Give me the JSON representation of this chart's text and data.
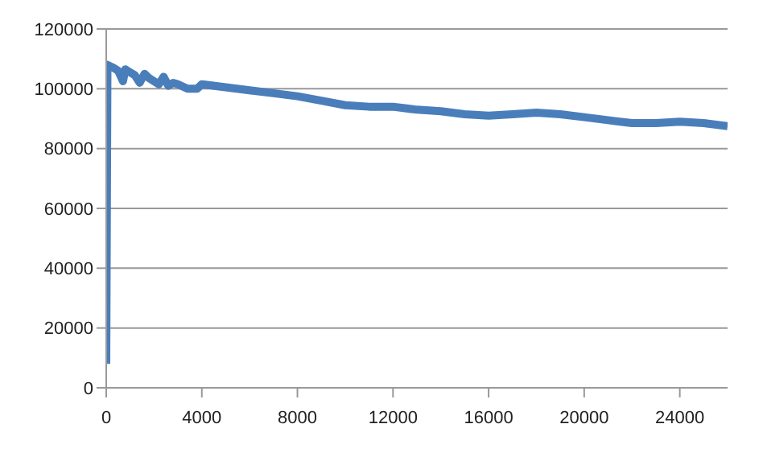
{
  "chart_data": {
    "type": "line",
    "x": [
      0,
      50,
      300,
      500,
      700,
      800,
      1000,
      1200,
      1400,
      1600,
      1800,
      2000,
      2200,
      2400,
      2600,
      2800,
      3000,
      3400,
      3800,
      4000,
      5000,
      6000,
      7000,
      8000,
      9000,
      10000,
      11000,
      12000,
      13000,
      14000,
      15000,
      16000,
      17000,
      18000,
      19000,
      20000,
      21000,
      22000,
      23000,
      24000,
      25000,
      26000
    ],
    "series": [
      {
        "color": "#4a7ebb",
        "values": [
          8000,
          108000,
          107000,
          106000,
          102500,
          106500,
          105500,
          104500,
          102000,
          105000,
          103500,
          102500,
          101500,
          104000,
          101000,
          102000,
          101500,
          100000,
          100000,
          101500,
          100500,
          99500,
          98500,
          97500,
          96000,
          94500,
          94000,
          94000,
          93000,
          92500,
          91500,
          91000,
          91500,
          92000,
          91500,
          90500,
          89500,
          88500,
          88500,
          89000,
          88500,
          87500
        ]
      }
    ],
    "xlim": [
      0,
      26000
    ],
    "xticks": [
      0,
      4000,
      8000,
      12000,
      16000,
      20000,
      24000
    ],
    "ylim": [
      0,
      120000
    ],
    "yticks": [
      0,
      20000,
      40000,
      60000,
      80000,
      100000,
      120000
    ],
    "grid": "y",
    "legend": false,
    "marker": "none",
    "line_style": "solid"
  }
}
